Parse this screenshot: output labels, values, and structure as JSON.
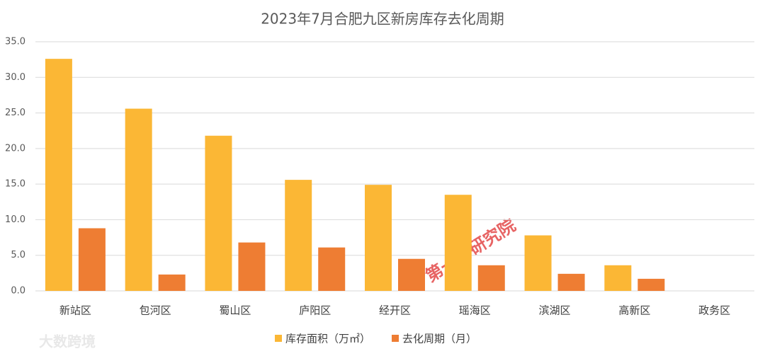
{
  "chart_data": {
    "type": "bar",
    "title": "2023年7月合肥九区新房库存去化周期",
    "categories": [
      "新站区",
      "包河区",
      "蜀山区",
      "庐阳区",
      "经开区",
      "瑶海区",
      "滨湖区",
      "高新区",
      "政务区"
    ],
    "series": [
      {
        "name": "库存面积（万㎡）",
        "color": "#fbb735",
        "values": [
          32.6,
          25.6,
          21.8,
          15.6,
          14.9,
          13.5,
          7.8,
          3.6,
          null
        ]
      },
      {
        "name": "去化周期（月）",
        "color": "#ee7d33",
        "values": [
          8.8,
          2.3,
          6.8,
          6.1,
          4.5,
          3.6,
          2.4,
          1.7,
          null
        ]
      }
    ],
    "ylim": [
      0,
      35
    ],
    "yticks": [
      {
        "value": 0,
        "label": "0.0"
      },
      {
        "value": 5,
        "label": "5.0"
      },
      {
        "value": 10,
        "label": "10.0"
      },
      {
        "value": 15,
        "label": "15.0"
      },
      {
        "value": 20,
        "label": "20.0"
      },
      {
        "value": 25,
        "label": "25.0"
      },
      {
        "value": 30,
        "label": "30.0"
      },
      {
        "value": 35,
        "label": "35.0"
      }
    ],
    "grid": true,
    "legend": "bottom",
    "watermarks": [
      "第一房研究院",
      "大数跨境"
    ]
  }
}
